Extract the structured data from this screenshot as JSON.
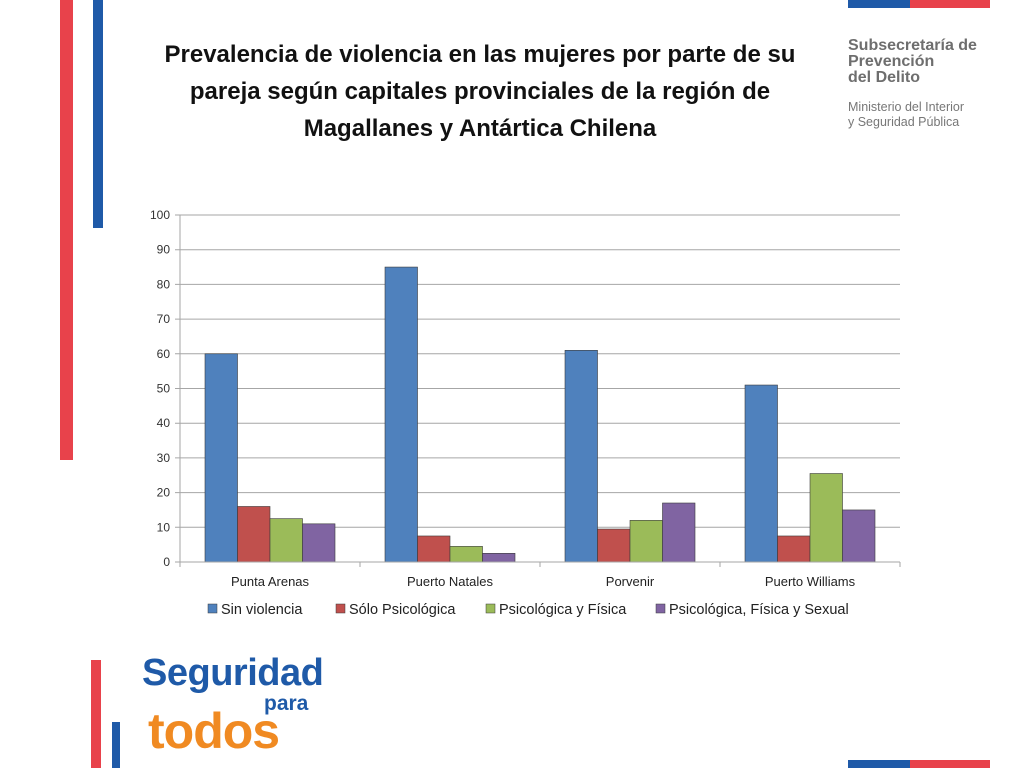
{
  "title": "Prevalencia de violencia en las mujeres por parte de su pareja según capitales provinciales de la región de Magallanes y Antártica Chilena",
  "organization": {
    "name": "Subsecretaría de\nPrevención\ndel Delito",
    "ministry": "Ministerio del Interior\ny Seguridad Pública"
  },
  "logo": {
    "line1": "Seguridad",
    "line2": "para",
    "line3": "todos"
  },
  "colors": {
    "brand_red": "#e8424b",
    "brand_blue": "#1f5aa8",
    "brand_orange": "#f08a22"
  },
  "chart_data": {
    "type": "bar",
    "categories": [
      "Punta Arenas",
      "Puerto Natales",
      "Porvenir",
      "Puerto Williams"
    ],
    "series": [
      {
        "name": "Sin violencia",
        "color": "#4f81bd",
        "values": [
          60,
          85,
          61,
          51
        ]
      },
      {
        "name": "Sólo Psicológica",
        "color": "#c0504d",
        "values": [
          16,
          7.5,
          9.5,
          7.5
        ]
      },
      {
        "name": "Psicológica y Física",
        "color": "#9bbb59",
        "values": [
          12.5,
          4.5,
          12,
          25.5
        ]
      },
      {
        "name": "Psicológica, Física y Sexual",
        "color": "#8064a2",
        "values": [
          11,
          2.5,
          17,
          15
        ]
      }
    ],
    "ylim": [
      0,
      100
    ],
    "yticks": [
      0,
      10,
      20,
      30,
      40,
      50,
      60,
      70,
      80,
      90,
      100
    ],
    "grid": true,
    "legend_position": "bottom"
  }
}
